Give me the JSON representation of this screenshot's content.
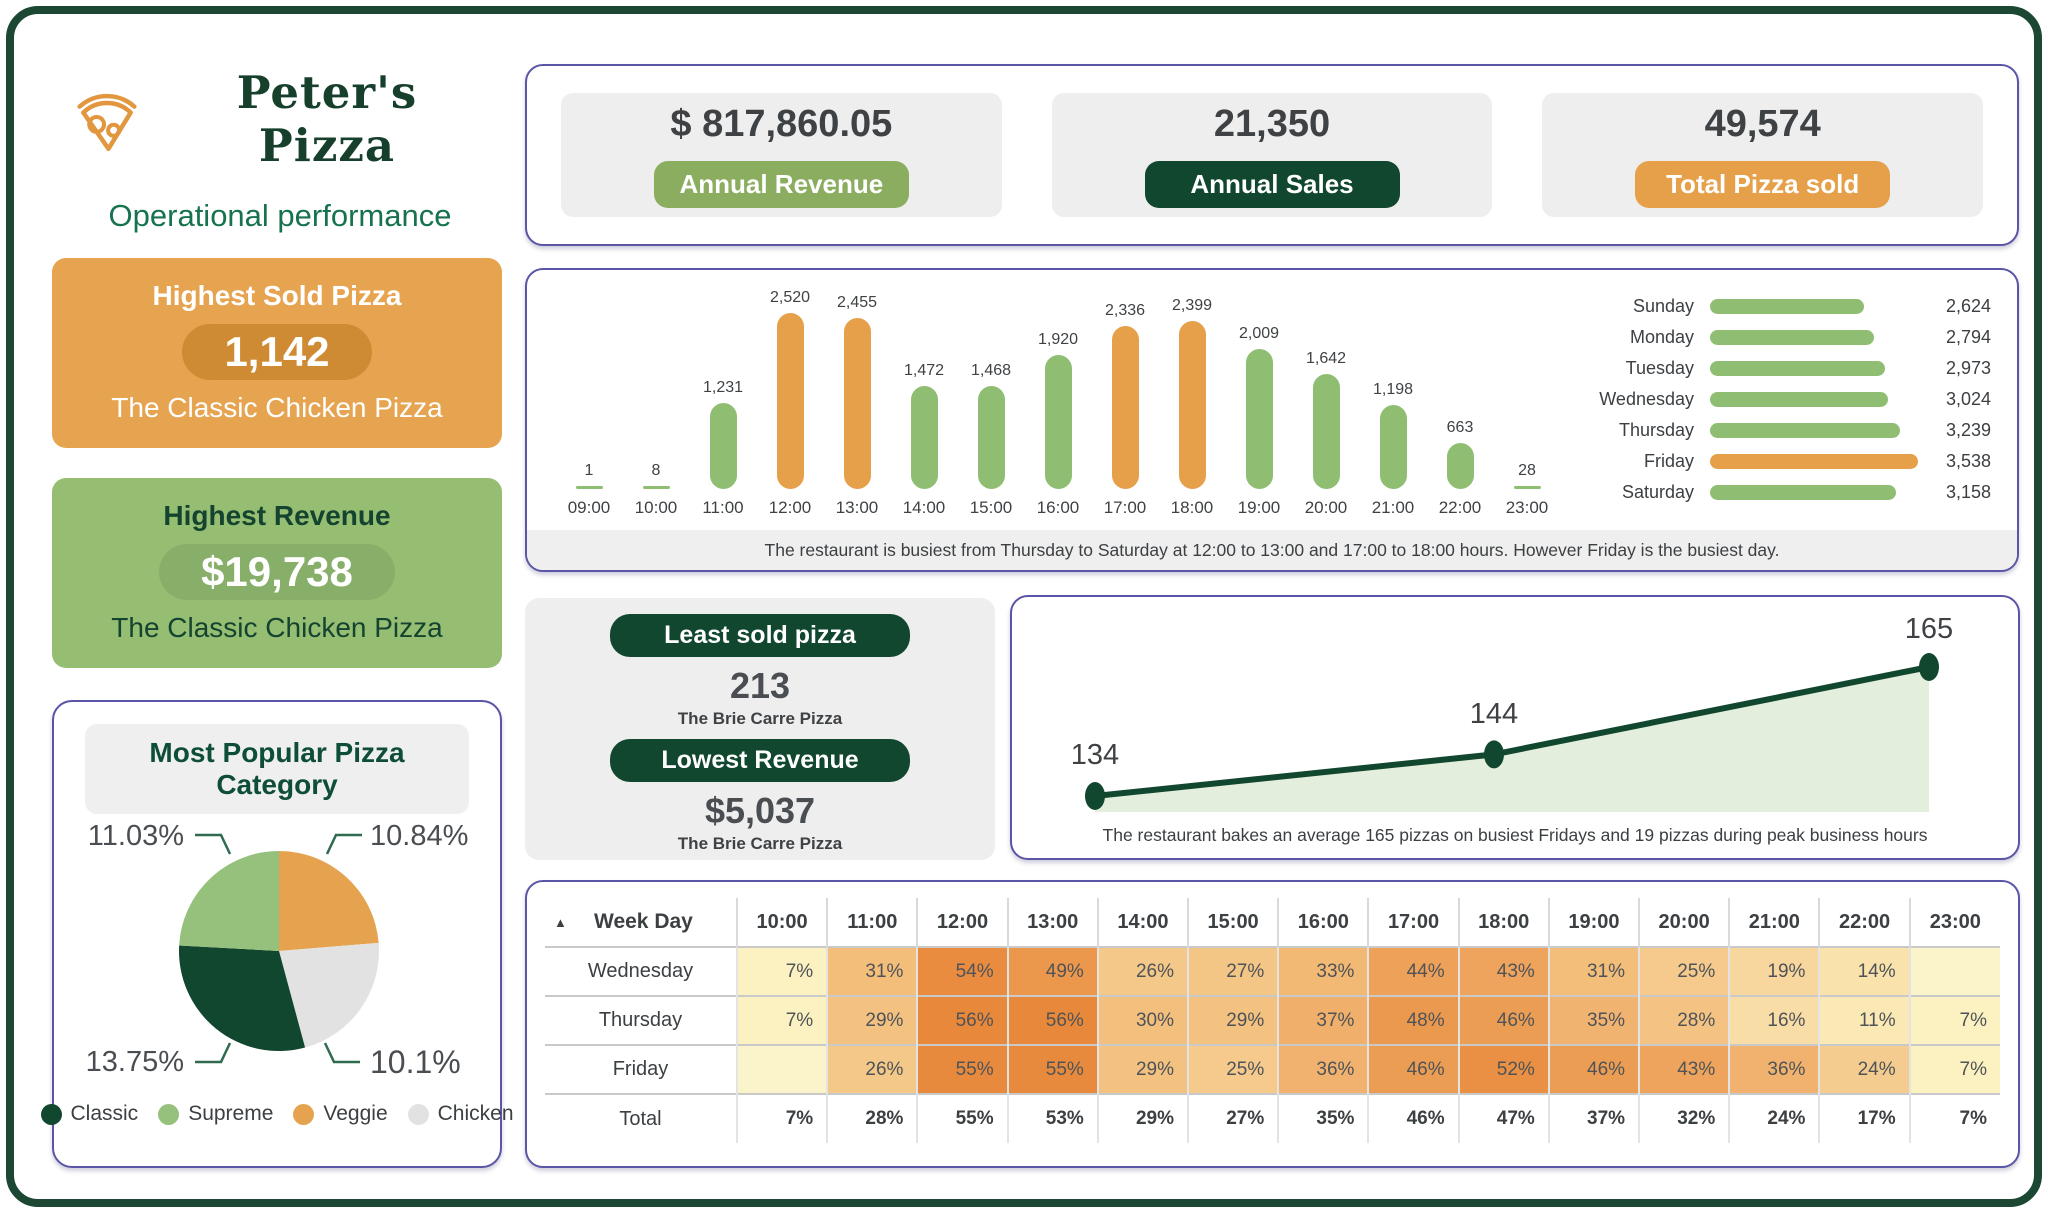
{
  "brand": {
    "title": "Peter's Pizza",
    "subtitle": "Operational performance",
    "logo_icon": "pizza-slice-icon",
    "logo_color": "#E2973F"
  },
  "colors": {
    "frame_green": "#1B4733",
    "dark_green": "#11472F",
    "panel_border": "#5A55A6",
    "bar_green": "#8FBE73",
    "accent_orange": "#E5A049",
    "card_gray": "#EEEEEE"
  },
  "kpis": [
    {
      "value": "$ 817,860.05",
      "label": "Annual Revenue",
      "pill_color": "#8BAD60"
    },
    {
      "value": "21,350",
      "label": "Annual Sales",
      "pill_color": "#11472F"
    },
    {
      "value": "49,574",
      "label": "Total Pizza sold",
      "pill_color": "#E5A049"
    }
  ],
  "highlights": {
    "sold": {
      "title": "Highest Sold Pizza",
      "value": "1,142",
      "subtitle": "The Classic Chicken Pizza"
    },
    "revenue": {
      "title": "Highest Revenue",
      "value": "$19,738",
      "subtitle": "The Classic Chicken Pizza"
    }
  },
  "least": {
    "pill_sold": "Least sold pizza",
    "sold_value": "213",
    "sold_name": "The Brie Carre Pizza",
    "pill_revenue": "Lowest Revenue",
    "revenue_value": "$5,037",
    "revenue_name": "The Brie Carre Pizza"
  },
  "chart_data": [
    {
      "type": "bar",
      "title": "Pizzas sold by hour of day",
      "categories": [
        "09:00",
        "10:00",
        "11:00",
        "12:00",
        "13:00",
        "14:00",
        "15:00",
        "16:00",
        "17:00",
        "18:00",
        "19:00",
        "20:00",
        "21:00",
        "22:00",
        "23:00"
      ],
      "values": [
        1,
        8,
        1231,
        2520,
        2455,
        1472,
        1468,
        1920,
        2336,
        2399,
        2009,
        1642,
        1198,
        663,
        28
      ],
      "highlighted": [
        "12:00",
        "13:00",
        "17:00",
        "18:00"
      ],
      "bar_color": "#8FBE73",
      "highlight_color": "#E5A049",
      "ylim": [
        0,
        2520
      ],
      "note": "The restaurant is busiest from Thursday to Saturday at 12:00 to 13:00 and 17:00 to 18:00 hours. However Friday is the busiest day."
    },
    {
      "type": "bar",
      "orientation": "horizontal",
      "title": "Pizzas sold by weekday",
      "categories": [
        "Sunday",
        "Monday",
        "Tuesday",
        "Wednesday",
        "Thursday",
        "Friday",
        "Saturday"
      ],
      "values": [
        2624,
        2794,
        2973,
        3024,
        3239,
        3538,
        3158
      ],
      "highlighted": [
        "Friday"
      ],
      "bar_color": "#8FBE73",
      "highlight_color": "#E5A049",
      "xlim": [
        0,
        3538
      ]
    },
    {
      "type": "pie",
      "title": "Most Popular Pizza Category",
      "slices": [
        {
          "label": "Classic",
          "value": 13.75,
          "pct_label": "13.75%",
          "color": "#11462F"
        },
        {
          "label": "Supreme",
          "value": 11.03,
          "pct_label": "11.03%",
          "color": "#96C17C"
        },
        {
          "label": "Veggie",
          "value": 10.84,
          "pct_label": "10.84%",
          "color": "#E6A34F"
        },
        {
          "label": "Chicken",
          "value": 10.1,
          "pct_label": "10.1%",
          "color": "#E2E2E2"
        }
      ],
      "draw_order": [
        2,
        3,
        0,
        1
      ],
      "legend_position": "bottom"
    },
    {
      "type": "area",
      "title": "Average pizzas baked",
      "values": [
        134,
        144,
        165
      ],
      "line_color": "#11472F",
      "fill_color": "#E4EEDC",
      "note": "The restaurant bakes an average 165 pizzas on busiest Fridays and 19 pizzas during peak business hours"
    },
    {
      "type": "heatmap",
      "corner_label": "Week Day",
      "sort_icon": "▲",
      "unit": "%",
      "columns": [
        "10:00",
        "11:00",
        "12:00",
        "13:00",
        "14:00",
        "15:00",
        "16:00",
        "17:00",
        "18:00",
        "19:00",
        "20:00",
        "21:00",
        "22:00",
        "23:00"
      ],
      "rows": [
        {
          "label": "Wednesday",
          "values": [
            7,
            31,
            54,
            49,
            26,
            27,
            33,
            44,
            43,
            31,
            25,
            19,
            14,
            null
          ]
        },
        {
          "label": "Thursday",
          "values": [
            7,
            29,
            56,
            56,
            30,
            29,
            37,
            48,
            46,
            35,
            28,
            16,
            11,
            7
          ]
        },
        {
          "label": "Friday",
          "values": [
            null,
            26,
            55,
            55,
            29,
            25,
            36,
            46,
            52,
            46,
            43,
            36,
            24,
            7
          ]
        }
      ],
      "total_row": {
        "label": "Total",
        "values": [
          7,
          28,
          55,
          53,
          29,
          27,
          35,
          46,
          47,
          37,
          32,
          24,
          17,
          7
        ]
      },
      "color_scale": {
        "low": "#FBF1C1",
        "mid": "#F3BF7D",
        "high": "#E8883A",
        "low_value": 7,
        "mid_value": 30,
        "high_value": 56
      }
    }
  ]
}
